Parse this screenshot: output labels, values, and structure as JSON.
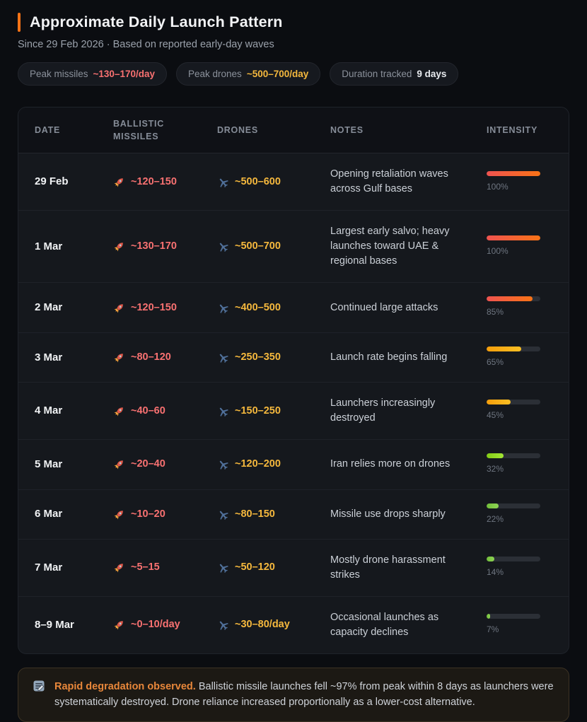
{
  "header": {
    "title": "Approximate Daily Launch Pattern",
    "subtitle": "Since 29 Feb 2026 · Based on reported early-day waves"
  },
  "badges": [
    {
      "label": "Peak missiles",
      "value": "~130–170/day",
      "value_color": "#f87171"
    },
    {
      "label": "Peak drones",
      "value": "~500–700/day",
      "value_color": "#f5b83d"
    },
    {
      "label": "Duration tracked",
      "value": "9 days",
      "value_color": "#e7eaee"
    }
  ],
  "chart_data": {
    "type": "table",
    "title": "Approximate Daily Launch Pattern",
    "columns": [
      "Date",
      "Ballistic Missiles",
      "Drones",
      "Notes",
      "Intensity"
    ],
    "rows": [
      {
        "date": "29 Feb",
        "missiles": "~120–150",
        "drones": "~500–600",
        "notes": "Opening retaliation waves across Gulf bases",
        "intensity": 100,
        "bar_colors": [
          "#ef5350",
          "#f97316"
        ]
      },
      {
        "date": "1 Mar",
        "missiles": "~130–170",
        "drones": "~500–700",
        "notes": "Largest early salvo; heavy launches toward UAE & regional bases",
        "intensity": 100,
        "bar_colors": [
          "#ef5350",
          "#f97316"
        ]
      },
      {
        "date": "2 Mar",
        "missiles": "~120–150",
        "drones": "~400–500",
        "notes": "Continued large attacks",
        "intensity": 85,
        "bar_colors": [
          "#ef5350",
          "#f97316"
        ]
      },
      {
        "date": "3 Mar",
        "missiles": "~80–120",
        "drones": "~250–350",
        "notes": "Launch rate begins falling",
        "intensity": 65,
        "bar_colors": [
          "#f59e0b",
          "#fbbf24"
        ]
      },
      {
        "date": "4 Mar",
        "missiles": "~40–60",
        "drones": "~150–250",
        "notes": "Launchers increasingly destroyed",
        "intensity": 45,
        "bar_colors": [
          "#f59e0b",
          "#fbbf24"
        ]
      },
      {
        "date": "5 Mar",
        "missiles": "~20–40",
        "drones": "~120–200",
        "notes": "Iran relies more on drones",
        "intensity": 32,
        "bar_colors": [
          "#84cc16",
          "#a3e635"
        ]
      },
      {
        "date": "6 Mar",
        "missiles": "~10–20",
        "drones": "~80–150",
        "notes": "Missile use drops sharply",
        "intensity": 22,
        "bar_colors": [
          "#72bf3a",
          "#8fd455"
        ]
      },
      {
        "date": "7 Mar",
        "missiles": "~5–15",
        "drones": "~50–120",
        "notes": "Mostly drone harassment strikes",
        "intensity": 14,
        "bar_colors": [
          "#72bf3a",
          "#8fd455"
        ]
      },
      {
        "date": "8–9 Mar",
        "missiles": "~0–10/day",
        "drones": "~30–80/day",
        "notes": "Occasional launches as capacity declines",
        "intensity": 7,
        "bar_colors": [
          "#72bf3a",
          "#8fd455"
        ]
      }
    ]
  },
  "table_headers": [
    "DATE",
    "BALLISTIC MISSILES",
    "DRONES",
    "NOTES",
    "INTENSITY"
  ],
  "footer_note": {
    "title": "Rapid degradation observed.",
    "text": "Ballistic missile launches fell ~97% from peak within 8 days as launchers were systematically destroyed. Drone reliance increased proportionally as a lower-cost alternative."
  }
}
